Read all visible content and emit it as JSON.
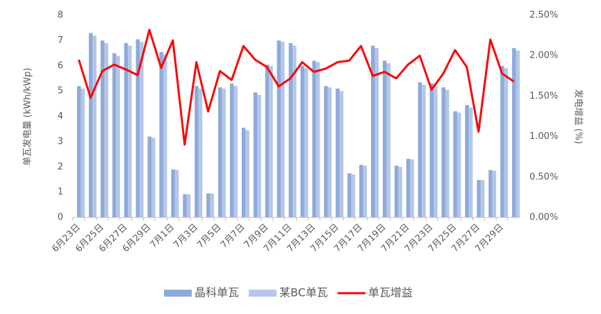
{
  "chart_data": {
    "type": "bar_line",
    "y_label": "单瓦发电量 (kWh/kWp)",
    "y2_label": "发电增益 (%)",
    "categories": [
      "6月23日",
      null,
      "6月25日",
      null,
      "6月27日",
      null,
      "6月29日",
      null,
      "7月1日",
      null,
      "7月3日",
      null,
      "7月5日",
      null,
      "7月7日",
      null,
      "7月9日",
      null,
      "7月11日",
      null,
      "7月13日",
      null,
      "7月15日",
      null,
      "7月17日",
      null,
      "7月19日",
      null,
      "7月21日",
      null,
      "7月23日",
      null,
      "7月25日",
      null,
      "7月27日",
      null,
      "7月29日",
      null
    ],
    "series": [
      {
        "name": "晶科单瓦",
        "type": "bar",
        "color": "#8eaadb",
        "values": [
          5.2,
          7.3,
          7.0,
          6.5,
          6.9,
          7.05,
          3.2,
          6.55,
          1.9,
          0.92,
          5.2,
          0.95,
          5.15,
          5.3,
          3.55,
          4.95,
          6.05,
          7.0,
          6.9,
          6.0,
          6.2,
          5.2,
          5.1,
          1.75,
          2.08,
          6.8,
          6.2,
          2.05,
          2.32,
          5.35,
          5.3,
          5.15,
          4.2,
          4.45,
          1.48,
          1.88,
          6.0,
          6.7
        ]
      },
      {
        "name": "某BC单瓦",
        "type": "bar",
        "color": "#b4c7e7",
        "values": [
          5.1,
          7.2,
          6.9,
          6.4,
          6.8,
          6.95,
          3.15,
          6.45,
          1.88,
          0.92,
          5.1,
          0.95,
          5.1,
          5.2,
          3.45,
          4.85,
          6.0,
          6.95,
          6.8,
          5.9,
          6.15,
          5.15,
          5.0,
          1.7,
          2.05,
          6.7,
          6.1,
          2.0,
          2.3,
          5.25,
          5.2,
          5.05,
          4.15,
          4.35,
          1.48,
          1.85,
          5.9,
          6.6
        ]
      },
      {
        "name": "单瓦增益",
        "type": "line",
        "axis": "y2",
        "color": "#ff0000",
        "values": [
          1.95,
          1.48,
          1.81,
          1.89,
          1.83,
          1.76,
          2.32,
          1.85,
          2.19,
          0.9,
          1.92,
          1.31,
          1.81,
          1.7,
          2.12,
          1.95,
          1.86,
          1.62,
          1.72,
          1.92,
          1.8,
          1.84,
          1.92,
          1.94,
          2.12,
          1.75,
          1.8,
          1.72,
          1.89,
          2.0,
          1.58,
          1.78,
          2.07,
          1.86,
          1.06,
          2.2,
          1.78,
          1.68
        ]
      }
    ],
    "ylim": [
      0,
      8
    ],
    "yticks": [
      0,
      1,
      2,
      3,
      4,
      5,
      6,
      7,
      8
    ],
    "y2lim": [
      0,
      2.5
    ],
    "y2ticks": [
      {
        "value": 0,
        "label": "0.00%"
      },
      {
        "value": 0.5,
        "label": "0.50%"
      },
      {
        "value": 1,
        "label": "1.00%"
      },
      {
        "value": 1.5,
        "label": "1.50%"
      },
      {
        "value": 2,
        "label": "2.00%"
      },
      {
        "value": 2.5,
        "label": "2.50%"
      }
    ],
    "legend": "bottom"
  }
}
